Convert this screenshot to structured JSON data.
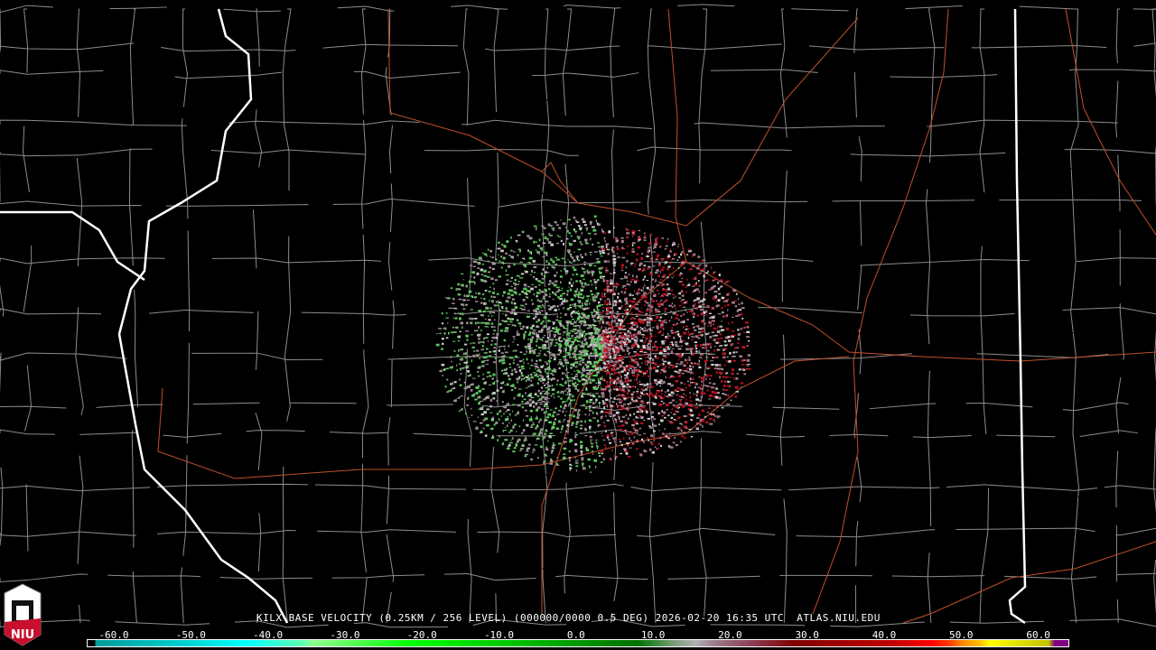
{
  "caption": "KILX BASE VELOCITY (0.25KM / 256 LEVEL) (000000/0000 0.5 DEG) 2026-02-20 16:35 UTC  ATLAS.NIU.EDU",
  "logo_text": "NIU",
  "legend": {
    "ticks": [
      "-60.0",
      "-50.0",
      "-40.0",
      "-30.0",
      "-20.0",
      "-10.0",
      "0.0",
      "10.0",
      "20.0",
      "30.0",
      "40.0",
      "50.0",
      "60.0"
    ],
    "colors": {
      "negative": "#00ff00",
      "positive": "#ff0000",
      "low": "#00ffff",
      "high": "#ffff00",
      "max": "#800080"
    }
  },
  "map_colors": {
    "state_border": "#ffffff",
    "county_border": "#8c8c8c",
    "roads": "#c0502a"
  }
}
